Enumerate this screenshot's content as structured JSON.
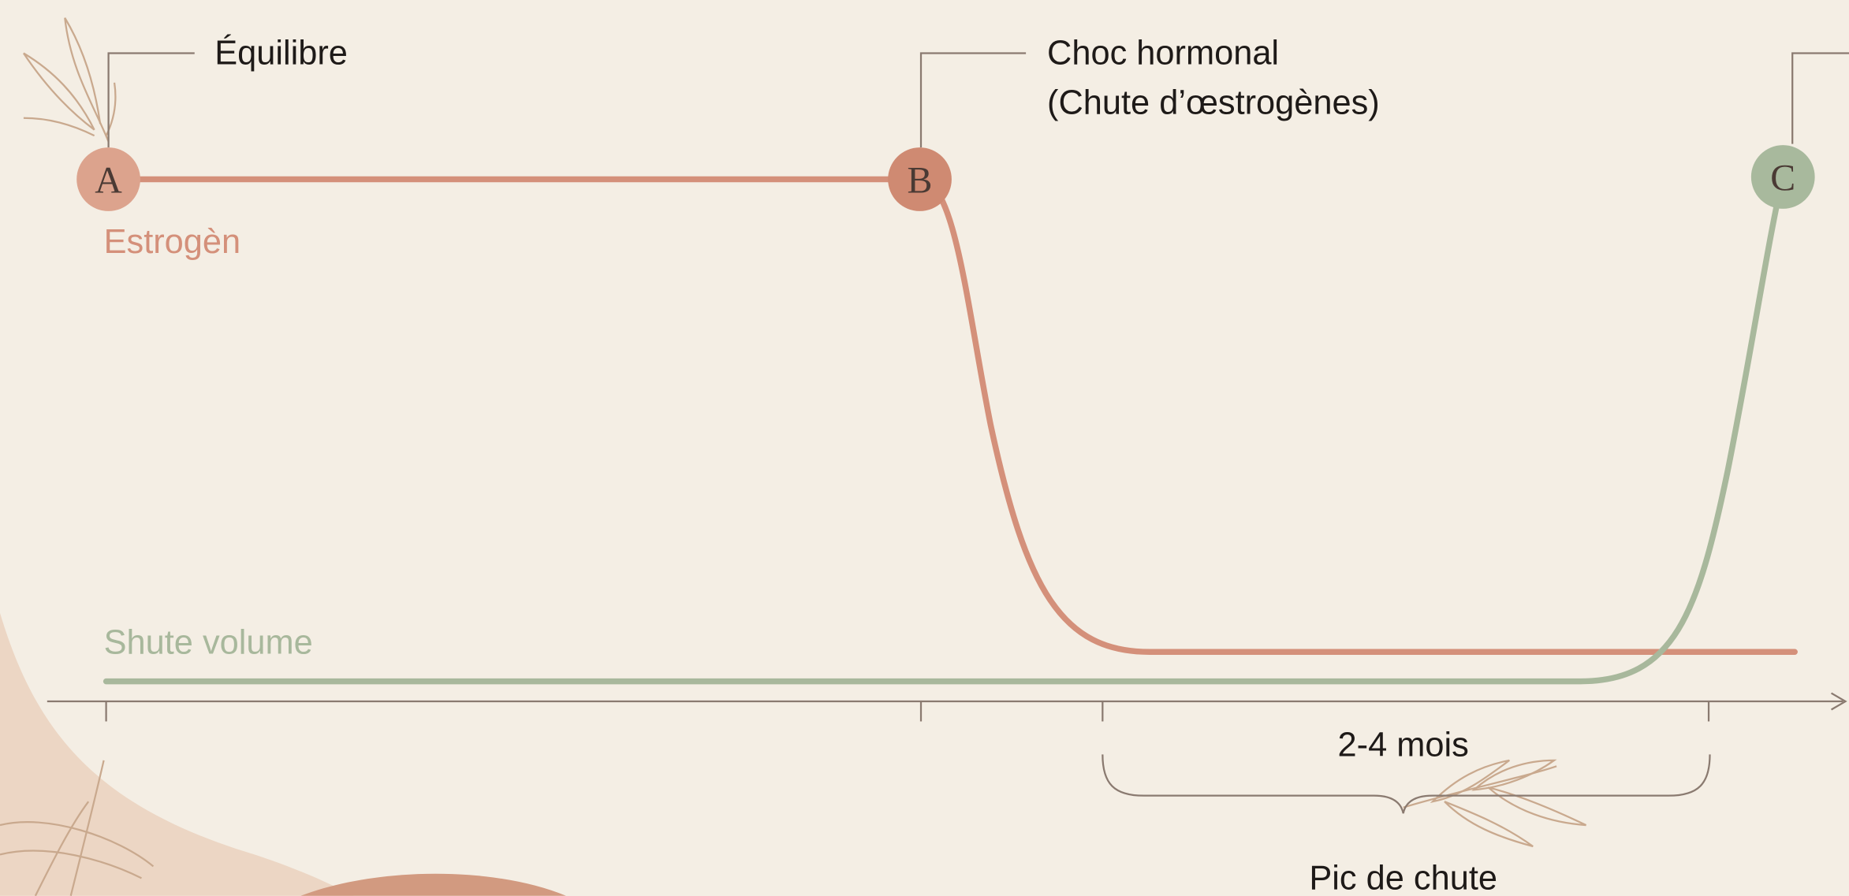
{
  "nodes": [
    {
      "label": "A"
    },
    {
      "label": "B"
    },
    {
      "label": "C"
    }
  ],
  "callouts": {
    "equilibre": "Équilibre",
    "choc_line1": "Choc hormonal",
    "choc_line2": "(Chute d’œstrogènes)"
  },
  "series_labels": {
    "estrogen": "Estrogèn",
    "volume": "Shute volume"
  },
  "interval": {
    "duration": "2-4 mois",
    "label": "Pic de chute"
  }
}
